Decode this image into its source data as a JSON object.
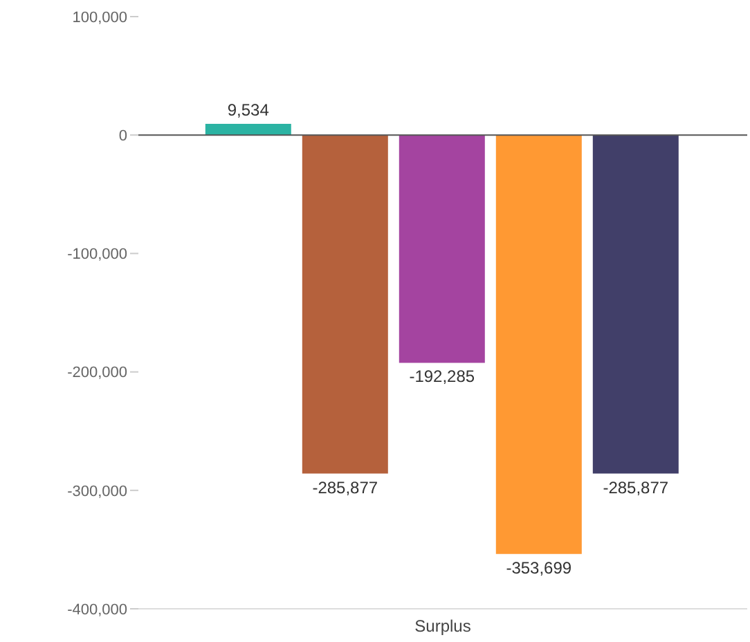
{
  "chart_data": {
    "type": "bar",
    "categories": [
      "Surplus"
    ],
    "series": [
      {
        "color": "#2bb3a3",
        "values": [
          9534
        ],
        "value_labels": [
          "9,534"
        ]
      },
      {
        "color": "#b5613c",
        "values": [
          -285877
        ],
        "value_labels": [
          "-285,877"
        ]
      },
      {
        "color": "#a444a0",
        "values": [
          -192285
        ],
        "value_labels": [
          "-192,285"
        ]
      },
      {
        "color": "#ff9933",
        "values": [
          -353699
        ],
        "value_labels": [
          "-353,699"
        ]
      },
      {
        "color": "#413f69",
        "values": [
          -285877
        ],
        "value_labels": [
          "-285,877"
        ]
      }
    ],
    "ylim": [
      -400000,
      100000
    ],
    "yticks": [
      {
        "value": -400000,
        "label": "-400,000"
      },
      {
        "value": -300000,
        "label": "-300,000"
      },
      {
        "value": -200000,
        "label": "-200,000"
      },
      {
        "value": -100000,
        "label": "-100,000"
      },
      0,
      {
        "value": 100000,
        "label": "100,000"
      }
    ],
    "grid": false,
    "legend": false,
    "ref_lines": [
      {
        "axis": "y",
        "value": 0,
        "color": "#555555"
      }
    ]
  }
}
